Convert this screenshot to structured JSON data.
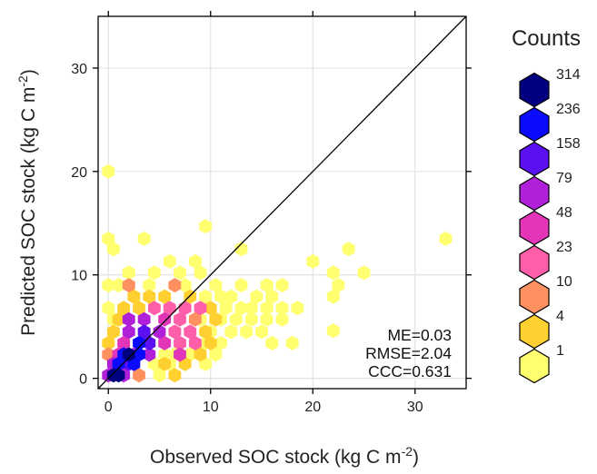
{
  "chart_data": {
    "type": "hexbin",
    "xlabel_main": "Observed SOC stock (kg C m",
    "xlabel_sup": "-2",
    "xlabel_end": ")",
    "ylabel_main": "Predicted SOC stock (kg C m",
    "ylabel_sup": "-2",
    "ylabel_end": ")",
    "xlim": [
      -1,
      35
    ],
    "ylim": [
      -1,
      35
    ],
    "xticks": [
      0,
      10,
      20,
      30
    ],
    "yticks": [
      0,
      10,
      20,
      30
    ],
    "grid": true,
    "reference_line": "1:1",
    "stats": [
      "ME=0.03",
      "RMSE=2.04",
      "CCC=0.631"
    ],
    "legend": {
      "title": "Counts",
      "placement": "right",
      "levels": [
        {
          "label": "314",
          "color": "#000080"
        },
        {
          "label": "236",
          "color": "#0a0aff"
        },
        {
          "label": "158",
          "color": "#5a10f0"
        },
        {
          "label": "79",
          "color": "#b020d8"
        },
        {
          "label": "48",
          "color": "#e235b8"
        },
        {
          "label": "23",
          "color": "#ff5ea8"
        },
        {
          "label": "10",
          "color": "#ff9060"
        },
        {
          "label": "4",
          "color": "#ffd030"
        },
        {
          "label": "1",
          "color": "#ffff70"
        }
      ]
    },
    "hexbins": [
      {
        "x": 0,
        "y": 20,
        "level": 8
      },
      {
        "x": 0,
        "y": 13.5,
        "level": 8
      },
      {
        "x": 0.5,
        "y": 12.5,
        "level": 8
      },
      {
        "x": 3.5,
        "y": 13.5,
        "level": 8
      },
      {
        "x": 9.5,
        "y": 14.7,
        "level": 8
      },
      {
        "x": 13,
        "y": 12.5,
        "level": 8
      },
      {
        "x": 6,
        "y": 11.3,
        "level": 8
      },
      {
        "x": 8.5,
        "y": 11.3,
        "level": 8
      },
      {
        "x": 0,
        "y": 9,
        "level": 8
      },
      {
        "x": 2,
        "y": 10.2,
        "level": 8
      },
      {
        "x": 1,
        "y": 9,
        "level": 8
      },
      {
        "x": 4.5,
        "y": 10.2,
        "level": 8
      },
      {
        "x": 7,
        "y": 10.2,
        "level": 8
      },
      {
        "x": 9,
        "y": 10.2,
        "level": 8
      },
      {
        "x": 4,
        "y": 9,
        "level": 8
      },
      {
        "x": 7.5,
        "y": 9,
        "level": 8
      },
      {
        "x": 13,
        "y": 9,
        "level": 8
      },
      {
        "x": 15.5,
        "y": 9,
        "level": 8
      },
      {
        "x": 17,
        "y": 9,
        "level": 8
      },
      {
        "x": 16,
        "y": 7.9,
        "level": 8
      },
      {
        "x": 14.5,
        "y": 7.9,
        "level": 8
      },
      {
        "x": 20,
        "y": 11.3,
        "level": 8
      },
      {
        "x": 22,
        "y": 10.2,
        "level": 8
      },
      {
        "x": 23.5,
        "y": 12.5,
        "level": 8
      },
      {
        "x": 25,
        "y": 10.2,
        "level": 8
      },
      {
        "x": 22.5,
        "y": 9,
        "level": 8
      },
      {
        "x": 22,
        "y": 7.9,
        "level": 8
      },
      {
        "x": 33,
        "y": 13.5,
        "level": 8
      },
      {
        "x": 11,
        "y": 7.9,
        "level": 8
      },
      {
        "x": 12,
        "y": 7.9,
        "level": 8
      },
      {
        "x": 11.5,
        "y": 6.8,
        "level": 8
      },
      {
        "x": 13,
        "y": 6.8,
        "level": 8
      },
      {
        "x": 14,
        "y": 6.8,
        "level": 8
      },
      {
        "x": 15.5,
        "y": 6.8,
        "level": 8
      },
      {
        "x": 17,
        "y": 6.8,
        "level": 8
      },
      {
        "x": 18.5,
        "y": 6.8,
        "level": 8
      },
      {
        "x": 11,
        "y": 5.7,
        "level": 8
      },
      {
        "x": 12.5,
        "y": 5.7,
        "level": 8
      },
      {
        "x": 14,
        "y": 5.7,
        "level": 8
      },
      {
        "x": 15.5,
        "y": 5.7,
        "level": 8
      },
      {
        "x": 17,
        "y": 5.7,
        "level": 8
      },
      {
        "x": 12,
        "y": 4.5,
        "level": 8
      },
      {
        "x": 13.5,
        "y": 4.5,
        "level": 8
      },
      {
        "x": 15,
        "y": 4.5,
        "level": 8
      },
      {
        "x": 16,
        "y": 3.4,
        "level": 8
      },
      {
        "x": 18,
        "y": 3.4,
        "level": 8
      },
      {
        "x": 22,
        "y": 4.6,
        "level": 8
      },
      {
        "x": 11,
        "y": 3.4,
        "level": 8
      },
      {
        "x": 10.5,
        "y": 2.3,
        "level": 8
      },
      {
        "x": 8,
        "y": 2.3,
        "level": 8
      },
      {
        "x": 9.5,
        "y": 1.4,
        "level": 8
      },
      {
        "x": 6.5,
        "y": 2.3,
        "level": 8
      },
      {
        "x": 5,
        "y": 0.3,
        "level": 8
      },
      {
        "x": 4.5,
        "y": 1.4,
        "level": 8
      },
      {
        "x": 6,
        "y": 1.4,
        "level": 8
      },
      {
        "x": 5.5,
        "y": 2.3,
        "level": 8
      },
      {
        "x": 9.5,
        "y": 3.4,
        "level": 8
      },
      {
        "x": 10,
        "y": 4.5,
        "level": 8
      },
      {
        "x": 9,
        "y": 5.7,
        "level": 8
      },
      {
        "x": 9.5,
        "y": 7.9,
        "level": 8
      },
      {
        "x": 10.5,
        "y": 9,
        "level": 8
      },
      {
        "x": 0,
        "y": 6.8,
        "level": 8
      },
      {
        "x": 0.5,
        "y": 5.7,
        "level": 8
      },
      {
        "x": 2.5,
        "y": 7.9,
        "level": 7
      },
      {
        "x": 4,
        "y": 7.9,
        "level": 7
      },
      {
        "x": 5.5,
        "y": 7.9,
        "level": 7
      },
      {
        "x": 8,
        "y": 7.9,
        "level": 7
      },
      {
        "x": 1,
        "y": 5.7,
        "level": 7
      },
      {
        "x": 1.5,
        "y": 6.8,
        "level": 7
      },
      {
        "x": 3,
        "y": 6.8,
        "level": 7
      },
      {
        "x": 10,
        "y": 6.8,
        "level": 7
      },
      {
        "x": 10.5,
        "y": 5.7,
        "level": 7
      },
      {
        "x": 0.5,
        "y": 4.5,
        "level": 7
      },
      {
        "x": 9.5,
        "y": 4.5,
        "level": 7
      },
      {
        "x": 10,
        "y": 3.4,
        "level": 7
      },
      {
        "x": 9,
        "y": 2.3,
        "level": 7
      },
      {
        "x": 7.5,
        "y": 1.4,
        "level": 7
      },
      {
        "x": 0,
        "y": 3.4,
        "level": 7
      },
      {
        "x": 6.5,
        "y": 0.3,
        "level": 7
      },
      {
        "x": 5.5,
        "y": 1.4,
        "level": 7
      },
      {
        "x": 2,
        "y": 9,
        "level": 6
      },
      {
        "x": 0,
        "y": 2.3,
        "level": 6
      },
      {
        "x": 3,
        "y": 0.3,
        "level": 6
      },
      {
        "x": 8.5,
        "y": 5.7,
        "level": 6
      },
      {
        "x": 6.5,
        "y": 9,
        "level": 6
      },
      {
        "x": 4.5,
        "y": 6.8,
        "level": 5
      },
      {
        "x": 6,
        "y": 6.8,
        "level": 5
      },
      {
        "x": 7.5,
        "y": 6.8,
        "level": 5
      },
      {
        "x": 9,
        "y": 6.8,
        "level": 5
      },
      {
        "x": 7,
        "y": 5.7,
        "level": 5
      },
      {
        "x": 8,
        "y": 4.5,
        "level": 5
      },
      {
        "x": 6.5,
        "y": 4.5,
        "level": 5
      },
      {
        "x": 8.5,
        "y": 3.4,
        "level": 5
      },
      {
        "x": 7,
        "y": 3.4,
        "level": 5
      },
      {
        "x": 7,
        "y": 2.3,
        "level": 4
      },
      {
        "x": 5.5,
        "y": 3.4,
        "level": 4
      },
      {
        "x": 1.5,
        "y": 3.4,
        "level": 4
      },
      {
        "x": 1,
        "y": 2.3,
        "level": 4
      },
      {
        "x": 5.5,
        "y": 5.7,
        "level": 4
      },
      {
        "x": 2,
        "y": 4.5,
        "level": 3
      },
      {
        "x": 3.5,
        "y": 5.7,
        "level": 3
      },
      {
        "x": 5,
        "y": 4.5,
        "level": 3
      },
      {
        "x": 0.5,
        "y": 1.4,
        "level": 3
      },
      {
        "x": 0,
        "y": 0.3,
        "level": 3
      },
      {
        "x": 1.5,
        "y": 0.3,
        "level": 3
      },
      {
        "x": 4,
        "y": 2.3,
        "level": 3
      },
      {
        "x": 2.5,
        "y": 2.3,
        "level": 3
      },
      {
        "x": 2,
        "y": 5.7,
        "level": 3
      },
      {
        "x": 4,
        "y": 3.4,
        "level": 2
      },
      {
        "x": 3.5,
        "y": 4.5,
        "level": 2
      },
      {
        "x": 2,
        "y": 1.4,
        "level": 2
      },
      {
        "x": 3,
        "y": 3.4,
        "level": 1
      },
      {
        "x": 2.5,
        "y": 1.4,
        "level": 1
      },
      {
        "x": 1,
        "y": 1.4,
        "level": 1
      },
      {
        "x": 1.5,
        "y": 2.3,
        "level": 1
      },
      {
        "x": 3,
        "y": 2.3,
        "level": 1
      },
      {
        "x": 0.5,
        "y": 0.3,
        "level": 0
      },
      {
        "x": 1,
        "y": 0.3,
        "level": 0
      },
      {
        "x": 2,
        "y": 2.3,
        "level": 0
      }
    ]
  }
}
